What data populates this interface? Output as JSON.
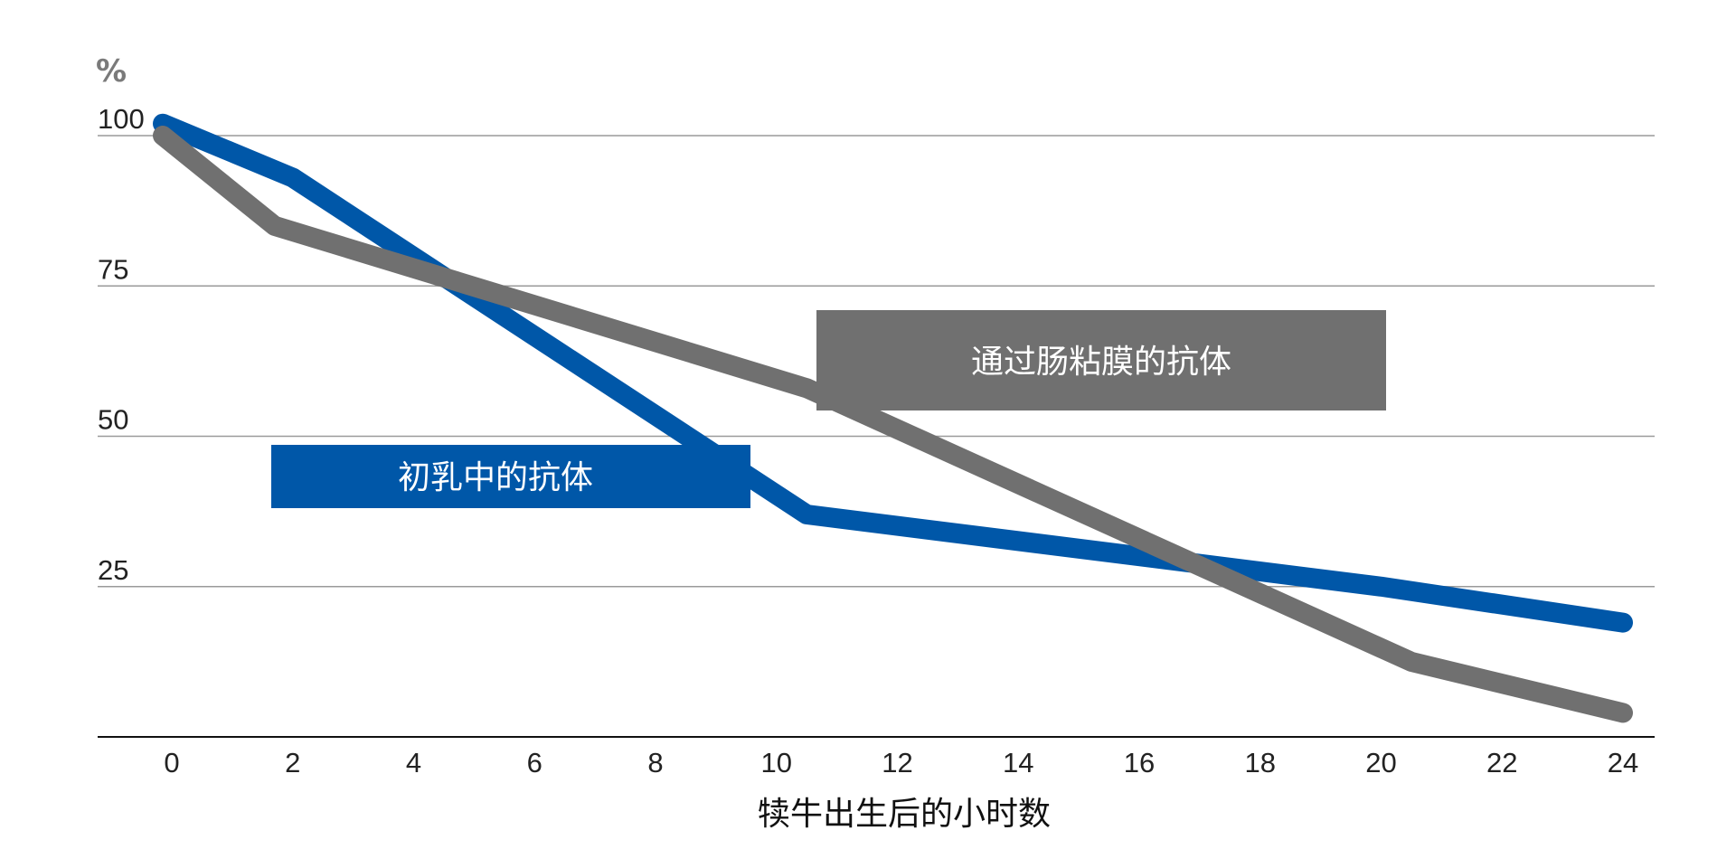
{
  "chart_data": {
    "type": "line",
    "ylabel": "%",
    "xlabel": "犊牛出生后的小时数",
    "ylim": [
      0,
      100
    ],
    "xlim": [
      0,
      24
    ],
    "x_ticks": [
      0,
      2,
      4,
      6,
      8,
      10,
      12,
      14,
      16,
      18,
      20,
      22,
      24
    ],
    "x_tick_labels": [
      "0",
      "2",
      "4",
      "6",
      "8",
      "10",
      "12",
      "14",
      "16",
      "18",
      "20",
      "22",
      "24"
    ],
    "y_ticks": [
      25,
      50,
      75,
      100
    ],
    "y_tick_labels": [
      "25",
      "50",
      "75",
      "100"
    ],
    "grid": "horizontal",
    "series": [
      {
        "name": "初乳中的抗体",
        "color": "#0057a8",
        "x": [
          -0.15,
          2,
          10.5,
          20,
          24
        ],
        "y": [
          102,
          93,
          37,
          25,
          19
        ]
      },
      {
        "name": "通过肠粘膜的抗体",
        "color": "#707070",
        "x": [
          -0.15,
          1.7,
          10.5,
          20.5,
          24
        ],
        "y": [
          100,
          85,
          58,
          12.5,
          4
        ]
      }
    ],
    "annotations": [
      {
        "text": "初乳中的抗体",
        "color": "#0057a8"
      },
      {
        "text": "通过肠粘膜的抗体",
        "color": "#707070"
      }
    ]
  }
}
